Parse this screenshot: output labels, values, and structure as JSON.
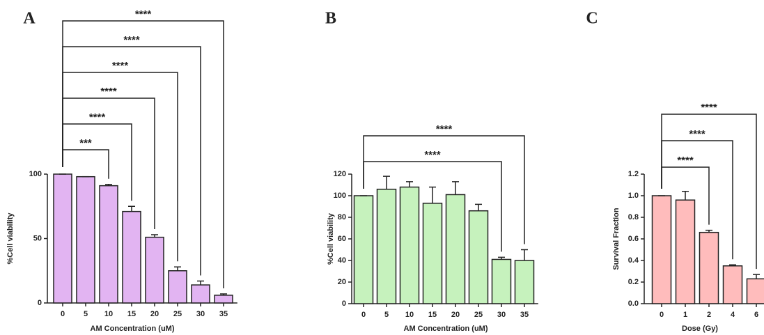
{
  "chart_data": [
    {
      "type": "bar",
      "panel_label": "A",
      "x_label": "AM Concentration (uM)",
      "y_label": "%Cell viability",
      "categories": [
        "0",
        "5",
        "10",
        "15",
        "20",
        "25",
        "30",
        "35"
      ],
      "values": [
        100,
        98,
        91,
        71,
        51,
        25,
        14,
        6
      ],
      "errors": [
        0,
        0,
        1,
        4,
        2,
        3,
        3,
        1
      ],
      "color": "#e2b4f2",
      "ylim": [
        0,
        100
      ],
      "yticks": [
        0,
        50,
        100
      ],
      "annotations": [
        "***",
        "****",
        "****",
        "****",
        "****",
        "****"
      ]
    },
    {
      "type": "bar",
      "panel_label": "B",
      "x_label": "AM Concentration (uM)",
      "y_label": "%Cell viability",
      "categories": [
        "0",
        "5",
        "10",
        "15",
        "20",
        "25",
        "30",
        "35"
      ],
      "values": [
        100,
        106,
        108,
        93,
        101,
        86,
        41,
        40
      ],
      "errors": [
        0,
        12,
        5,
        15,
        12,
        6,
        2,
        10
      ],
      "color": "#c6f2bd",
      "ylim": [
        0,
        120
      ],
      "yticks": [
        0,
        20,
        40,
        60,
        80,
        100,
        120
      ],
      "annotations": [
        "****",
        "****"
      ]
    },
    {
      "type": "bar",
      "panel_label": "C",
      "x_label": "Dose (Gy)",
      "y_label": "Survival Fraction",
      "categories": [
        "0",
        "1",
        "2",
        "4",
        "6"
      ],
      "values": [
        1.0,
        0.96,
        0.66,
        0.35,
        0.23
      ],
      "errors": [
        0,
        0.08,
        0.02,
        0.01,
        0.04
      ],
      "color": "#ffbcbc",
      "ylim": [
        0,
        1.2
      ],
      "yticks": [
        {
          "value": 0,
          "label": "0.0"
        },
        0.2,
        0.4,
        0.6,
        0.8,
        {
          "value": 1,
          "label": "1.0"
        },
        1.2
      ],
      "annotations": [
        "****",
        "****",
        "****"
      ]
    }
  ]
}
